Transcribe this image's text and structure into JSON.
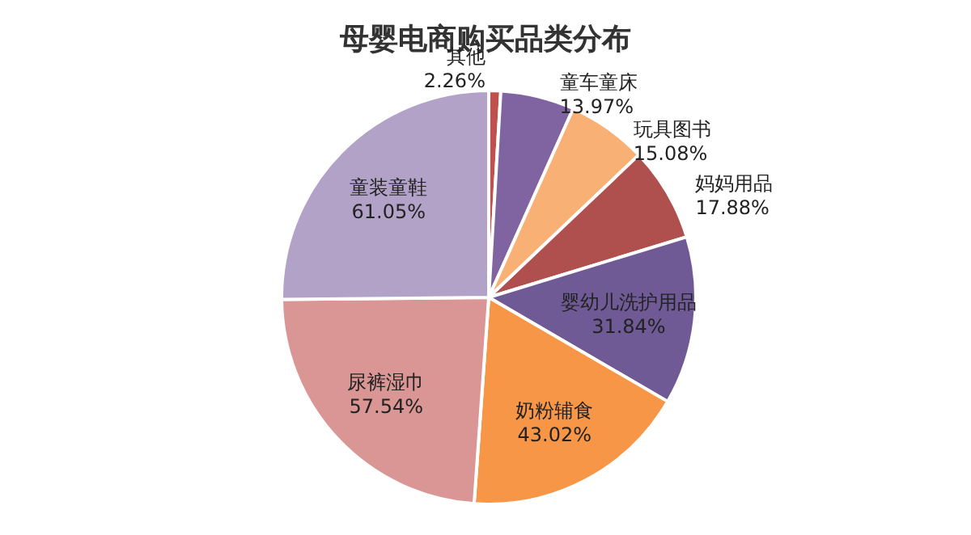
{
  "chart_data": {
    "type": "pie",
    "title": "母婴电商购买品类分布",
    "categories": [
      "其他",
      "童车童床",
      "玩具图书",
      "妈妈用品",
      "婴幼儿洗护用品",
      "奶粉辅食",
      "尿裤湿巾",
      "童装童鞋"
    ],
    "values": [
      2.26,
      13.97,
      15.08,
      17.88,
      31.84,
      43.02,
      57.54,
      61.05
    ],
    "value_labels": [
      "2.26%",
      "13.97%",
      "15.08%",
      "17.88%",
      "31.84%",
      "43.02%",
      "57.54%",
      "61.05%"
    ],
    "colors": [
      "#c0504d",
      "#8064a2",
      "#f9b074",
      "#b0504e",
      "#6f5a96",
      "#f79646",
      "#d99694",
      "#b3a2c7"
    ],
    "legend": false
  }
}
